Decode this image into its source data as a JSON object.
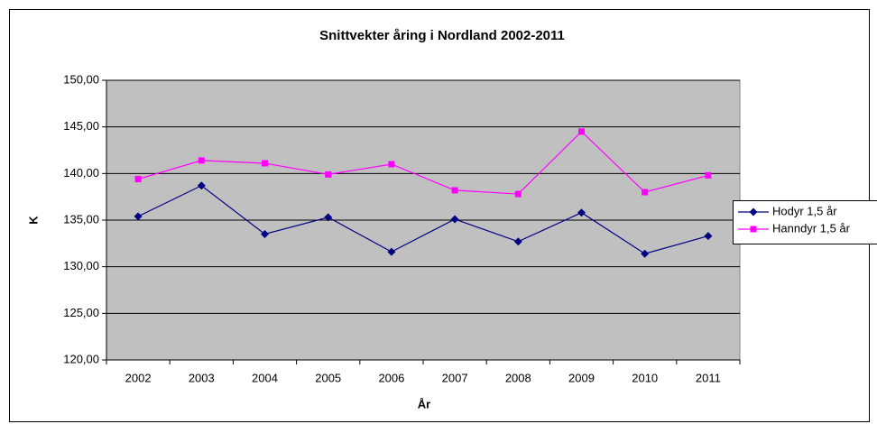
{
  "chart_data": {
    "type": "line",
    "title": "Snittvekter åring i Nordland 2002-2011",
    "x_label": "År",
    "y_label": "K",
    "categories": [
      "2002",
      "2003",
      "2004",
      "2005",
      "2006",
      "2007",
      "2008",
      "2009",
      "2010",
      "2011"
    ],
    "series": [
      {
        "name": "Hodyr 1,5 år",
        "color": "#000080",
        "marker": "diamond",
        "values": [
          135.4,
          138.7,
          133.5,
          135.3,
          131.6,
          135.1,
          132.7,
          135.8,
          131.4,
          133.3
        ]
      },
      {
        "name": "Hanndyr 1,5 år",
        "color": "#ff00ff",
        "marker": "square",
        "values": [
          139.4,
          141.4,
          141.1,
          139.9,
          141.0,
          138.2,
          137.8,
          144.5,
          138.0,
          139.8
        ]
      }
    ],
    "ylim": [
      120,
      150
    ],
    "yticks": [
      {
        "value": 120,
        "label": "120,00"
      },
      {
        "value": 125,
        "label": "125,00"
      },
      {
        "value": 130,
        "label": "130,00"
      },
      {
        "value": 135,
        "label": "135,00"
      },
      {
        "value": 140,
        "label": "140,00"
      },
      {
        "value": 145,
        "label": "145,00"
      },
      {
        "value": 150,
        "label": "150,00"
      }
    ],
    "grid": true,
    "legend": "right",
    "plot_background": "#c0c0c0"
  }
}
